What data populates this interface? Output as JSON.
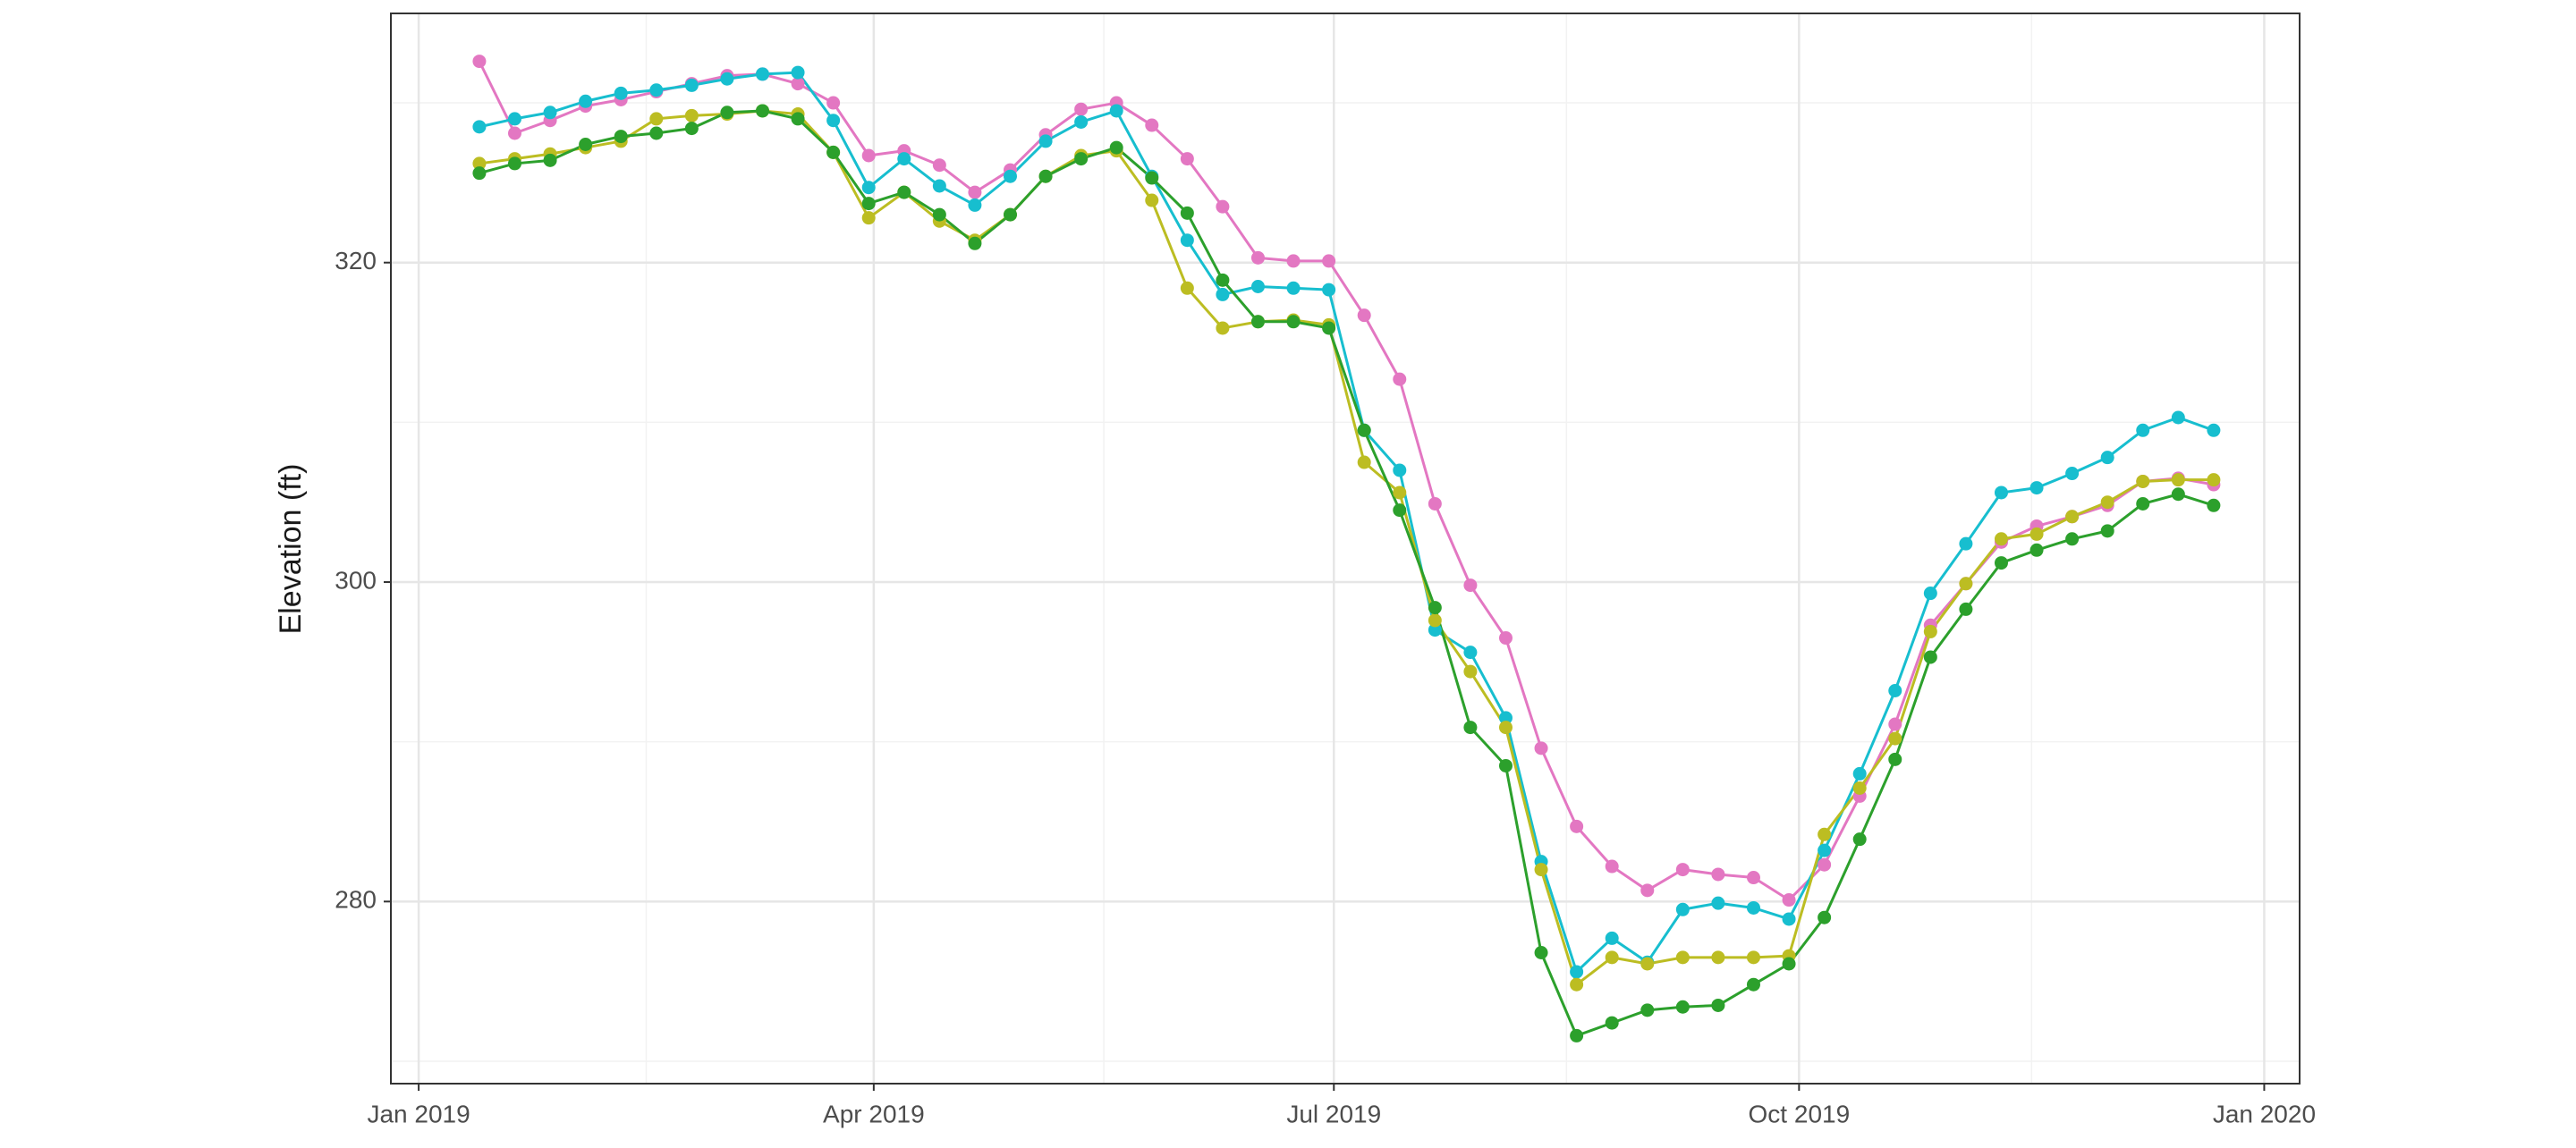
{
  "chart_data": {
    "type": "line",
    "y_label": "Elevation (ft)",
    "x": [
      12,
      19,
      26,
      33,
      40,
      47,
      54,
      61,
      68,
      75,
      82,
      89,
      96,
      103,
      110,
      117,
      124,
      131,
      138,
      145,
      152,
      159,
      166,
      173,
      180,
      187,
      194,
      201,
      208,
      215,
      222,
      229,
      236,
      243,
      250,
      257,
      264,
      271,
      278,
      285,
      292,
      299,
      306,
      313,
      320,
      327,
      334,
      341,
      348,
      355
    ],
    "series": [
      {
        "color": "#e377c2",
        "values": [
          332.6,
          328.1,
          328.9,
          329.8,
          330.2,
          330.7,
          331.2,
          331.7,
          331.8,
          331.2,
          330.0,
          326.7,
          327.0,
          326.1,
          324.4,
          325.8,
          328.0,
          329.6,
          330.0,
          328.6,
          326.5,
          323.5,
          320.3,
          320.1,
          320.1,
          316.7,
          312.7,
          304.9,
          299.8,
          296.5,
          289.6,
          284.7,
          282.2,
          280.7,
          282.0,
          281.7,
          281.5,
          280.1,
          282.3,
          286.6,
          291.1,
          297.3,
          299.9,
          302.5,
          303.5,
          304.1,
          304.8,
          306.3,
          306.5,
          306.1
        ]
      },
      {
        "color": "#17becf",
        "values": [
          328.5,
          329.0,
          329.4,
          330.1,
          330.6,
          330.8,
          331.1,
          331.5,
          331.8,
          331.9,
          328.9,
          324.7,
          326.5,
          324.8,
          323.6,
          325.4,
          327.6,
          328.8,
          329.5,
          325.4,
          321.4,
          318.0,
          318.5,
          318.4,
          318.3,
          309.5,
          307.0,
          297.0,
          295.6,
          291.5,
          282.5,
          275.6,
          277.7,
          276.2,
          279.5,
          279.9,
          279.6,
          278.9,
          283.2,
          288.0,
          293.2,
          299.3,
          302.4,
          305.6,
          305.9,
          306.8,
          307.8,
          309.5,
          310.3,
          309.5
        ]
      },
      {
        "color": "#bcbd22",
        "values": [
          326.2,
          326.5,
          326.8,
          327.2,
          327.6,
          329.0,
          329.2,
          329.3,
          329.5,
          329.3,
          326.9,
          322.8,
          324.4,
          322.6,
          321.4,
          323.0,
          325.4,
          326.7,
          327.0,
          323.9,
          318.4,
          315.9,
          316.3,
          316.4,
          316.1,
          307.5,
          305.6,
          297.6,
          294.4,
          290.9,
          282.0,
          274.8,
          276.5,
          276.1,
          276.5,
          276.5,
          276.5,
          276.6,
          284.2,
          287.1,
          290.2,
          296.9,
          299.9,
          302.7,
          303.0,
          304.1,
          305.0,
          306.3,
          306.4,
          306.4
        ]
      },
      {
        "color": "#2ca02c",
        "values": [
          325.6,
          326.2,
          326.4,
          327.4,
          327.9,
          328.1,
          328.4,
          329.4,
          329.5,
          329.0,
          326.9,
          323.7,
          324.4,
          323.0,
          321.2,
          323.0,
          325.4,
          326.5,
          327.2,
          325.3,
          323.1,
          318.9,
          316.3,
          316.3,
          315.9,
          309.5,
          304.5,
          298.4,
          290.9,
          288.5,
          276.8,
          271.6,
          272.4,
          273.2,
          273.4,
          273.5,
          274.8,
          276.1,
          279.0,
          283.9,
          288.9,
          295.3,
          298.3,
          301.2,
          302.0,
          302.7,
          303.2,
          304.9,
          305.5,
          304.8
        ]
      }
    ],
    "xlim": [
      -5.5,
      372
    ],
    "xticks": [
      {
        "value": 0,
        "label": "Jan 2019"
      },
      {
        "value": 90,
        "label": "Apr 2019"
      },
      {
        "value": 181,
        "label": "Jul 2019"
      },
      {
        "value": 273,
        "label": "Oct 2019"
      },
      {
        "value": 365,
        "label": "Jan 2020"
      }
    ],
    "x_minor_ticks": [
      45,
      135.5,
      227,
      319
    ],
    "ylim": [
      268.6,
      335.6
    ],
    "yticks": [
      280,
      300,
      320
    ],
    "y_minor_ticks": [
      270,
      290,
      310,
      330
    ],
    "grid": true
  }
}
